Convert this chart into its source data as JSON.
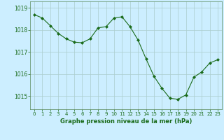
{
  "x": [
    0,
    1,
    2,
    3,
    4,
    5,
    6,
    7,
    8,
    9,
    10,
    11,
    12,
    13,
    14,
    15,
    16,
    17,
    18,
    19,
    20,
    21,
    22,
    23
  ],
  "y": [
    1018.7,
    1018.55,
    1018.2,
    1017.85,
    1017.6,
    1017.45,
    1017.42,
    1017.6,
    1018.1,
    1018.15,
    1018.55,
    1018.6,
    1018.15,
    1017.55,
    1016.7,
    1015.9,
    1015.35,
    1014.9,
    1014.85,
    1015.05,
    1015.85,
    1016.1,
    1016.5,
    1016.65
  ],
  "line_color": "#1a6b1a",
  "marker": "D",
  "marker_size": 2.0,
  "bg_color": "#cceeff",
  "grid_color": "#aacccc",
  "xlabel": "Graphe pression niveau de la mer (hPa)",
  "xlabel_color": "#1a6b1a",
  "ylabel_ticks": [
    1015,
    1016,
    1017,
    1018,
    1019
  ],
  "ylim": [
    1014.4,
    1019.3
  ],
  "xlim": [
    -0.5,
    23.5
  ],
  "tick_label_color": "#1a6b1a",
  "axis_color": "#5a8a5a",
  "xlabel_fontsize": 6.0,
  "ytick_fontsize": 5.5,
  "xtick_fontsize": 5.0
}
